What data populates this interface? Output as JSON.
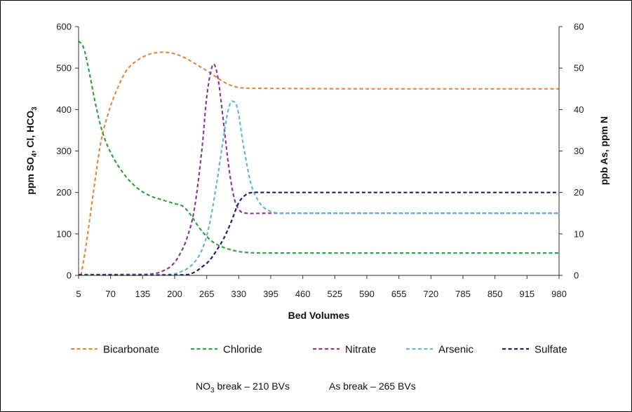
{
  "chart_data": {
    "type": "line",
    "xlabel": "Bed Volumes",
    "ylabel_left": {
      "main": "ppm SO",
      "sub1": "4",
      "mid": ", Cl, HCO",
      "sub2": "3"
    },
    "ylabel_right": "ppb As, ppm N",
    "x_ticks": [
      "5",
      "70",
      "135",
      "200",
      "265",
      "330",
      "395",
      "460",
      "525",
      "590",
      "655",
      "720",
      "785",
      "850",
      "915",
      "980"
    ],
    "xlim": [
      5,
      980
    ],
    "ylim_left": [
      0,
      600
    ],
    "ylim_right": [
      0,
      60
    ],
    "y_ticks_left": [
      "0",
      "100",
      "200",
      "300",
      "400",
      "500",
      "600"
    ],
    "y_ticks_right": [
      "0",
      "10",
      "20",
      "30",
      "40",
      "50",
      "60"
    ],
    "grid": false,
    "legend_position": "bottom",
    "series": [
      {
        "name": "Bicarbonate",
        "axis": "left",
        "color": "#E8893A",
        "points": [
          [
            10,
            0
          ],
          [
            20,
            70
          ],
          [
            35,
            200
          ],
          [
            50,
            320
          ],
          [
            65,
            390
          ],
          [
            80,
            440
          ],
          [
            100,
            490
          ],
          [
            120,
            515
          ],
          [
            145,
            532
          ],
          [
            170,
            538
          ],
          [
            195,
            536
          ],
          [
            220,
            525
          ],
          [
            245,
            508
          ],
          [
            270,
            490
          ],
          [
            295,
            470
          ],
          [
            315,
            458
          ],
          [
            340,
            452
          ],
          [
            400,
            451
          ],
          [
            600,
            450
          ],
          [
            800,
            450
          ],
          [
            980,
            450
          ]
        ]
      },
      {
        "name": "Chloride",
        "axis": "left",
        "color": "#2AA63E",
        "points": [
          [
            5,
            565
          ],
          [
            15,
            550
          ],
          [
            25,
            500
          ],
          [
            40,
            410
          ],
          [
            55,
            340
          ],
          [
            75,
            285
          ],
          [
            100,
            240
          ],
          [
            125,
            210
          ],
          [
            150,
            192
          ],
          [
            175,
            182
          ],
          [
            200,
            173
          ],
          [
            215,
            168
          ],
          [
            230,
            150
          ],
          [
            250,
            115
          ],
          [
            270,
            88
          ],
          [
            290,
            72
          ],
          [
            320,
            60
          ],
          [
            350,
            55
          ],
          [
            400,
            54
          ],
          [
            600,
            54
          ],
          [
            800,
            54
          ],
          [
            980,
            54
          ]
        ]
      },
      {
        "name": "Nitrate",
        "axis": "right",
        "color": "#8A3A9A",
        "points": [
          [
            5,
            0.2
          ],
          [
            100,
            0.2
          ],
          [
            150,
            0.3
          ],
          [
            175,
            1
          ],
          [
            195,
            2.5
          ],
          [
            210,
            5
          ],
          [
            225,
            9
          ],
          [
            240,
            16
          ],
          [
            255,
            30
          ],
          [
            265,
            43
          ],
          [
            275,
            50
          ],
          [
            282,
            50.5
          ],
          [
            290,
            46
          ],
          [
            300,
            36
          ],
          [
            310,
            26
          ],
          [
            320,
            19
          ],
          [
            330,
            16
          ],
          [
            345,
            15
          ],
          [
            400,
            15
          ],
          [
            600,
            15
          ],
          [
            800,
            15
          ],
          [
            980,
            15
          ]
        ]
      },
      {
        "name": "Arsenic",
        "axis": "right",
        "color": "#5FB8DC",
        "points": [
          [
            5,
            0.1
          ],
          [
            150,
            0.1
          ],
          [
            195,
            0.3
          ],
          [
            215,
            1
          ],
          [
            235,
            2.5
          ],
          [
            255,
            6
          ],
          [
            270,
            12
          ],
          [
            285,
            22
          ],
          [
            300,
            34
          ],
          [
            310,
            40.5
          ],
          [
            318,
            42
          ],
          [
            328,
            40
          ],
          [
            340,
            31
          ],
          [
            355,
            22
          ],
          [
            370,
            18
          ],
          [
            385,
            16
          ],
          [
            410,
            15
          ],
          [
            450,
            15
          ],
          [
            600,
            15
          ],
          [
            800,
            15
          ],
          [
            980,
            15
          ]
        ]
      },
      {
        "name": "Sulfate",
        "axis": "right",
        "color": "#1C2266",
        "points": [
          [
            5,
            0.1
          ],
          [
            200,
            0.1
          ],
          [
            235,
            0.5
          ],
          [
            255,
            2
          ],
          [
            270,
            3.5
          ],
          [
            285,
            6
          ],
          [
            300,
            9
          ],
          [
            315,
            13
          ],
          [
            330,
            17.5
          ],
          [
            345,
            19.5
          ],
          [
            360,
            20
          ],
          [
            400,
            20
          ],
          [
            600,
            20
          ],
          [
            800,
            20
          ],
          [
            980,
            20
          ]
        ]
      }
    ]
  },
  "notes": {
    "nitrate_break": {
      "pre": "NO",
      "sub": "3",
      "post": " break – 210 BVs"
    },
    "arsenic_break": "As break – 265 BVs"
  }
}
